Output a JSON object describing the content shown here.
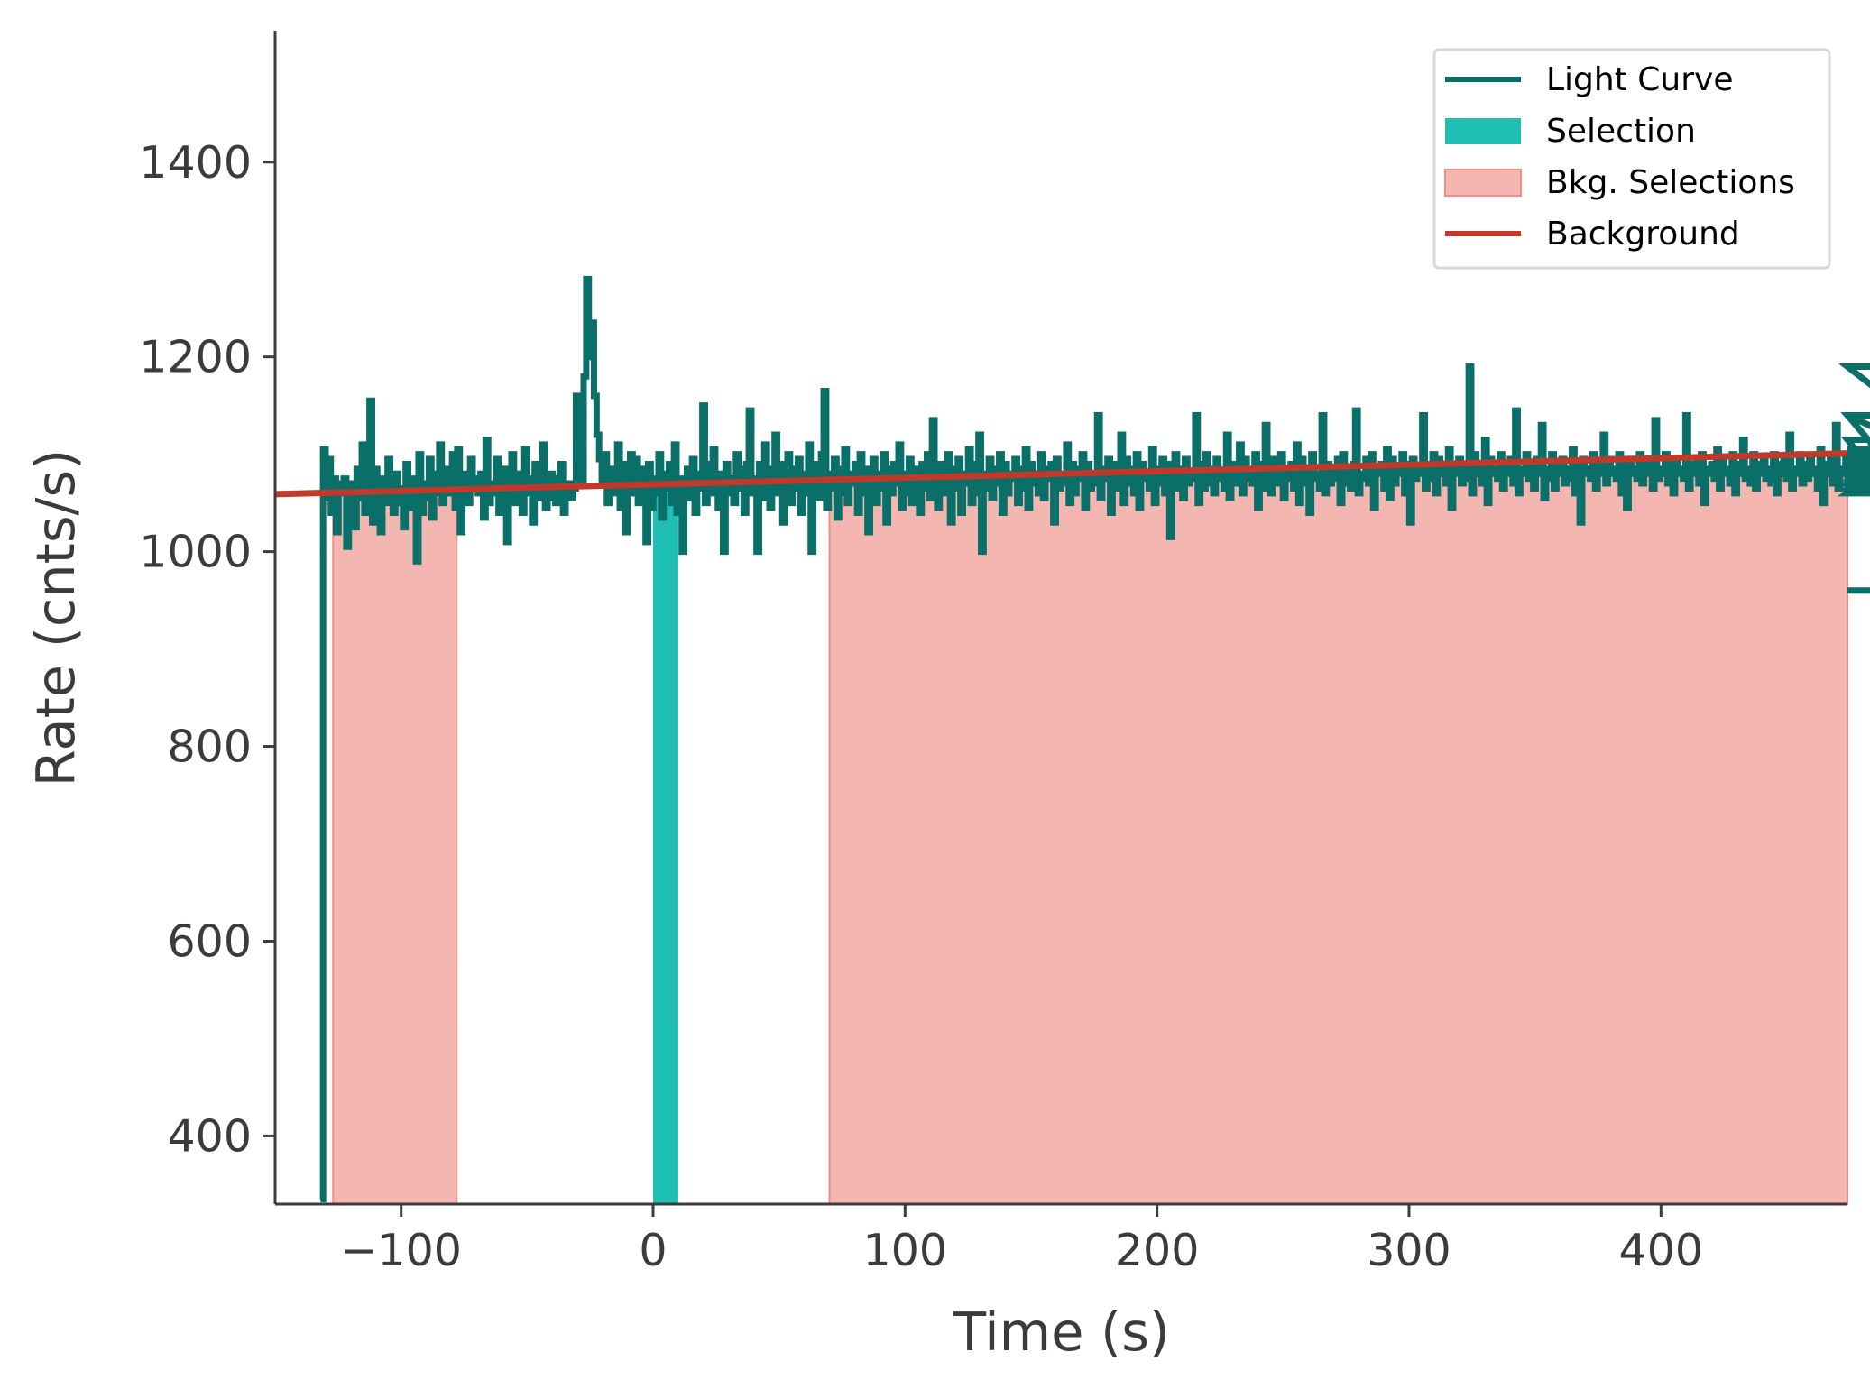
{
  "chart_data": {
    "type": "line",
    "title": "",
    "xlabel": "Time (s)",
    "ylabel": "Rate (cnts/s)",
    "xlim": [
      -150,
      474
    ],
    "ylim": [
      330,
      1535
    ],
    "x_ticks": [
      -100,
      0,
      100,
      200,
      300,
      400
    ],
    "x_tick_labels": [
      "−100",
      "0",
      "100",
      "200",
      "300",
      "400"
    ],
    "y_ticks": [
      400,
      600,
      800,
      1000,
      1200,
      1400
    ],
    "y_tick_labels": [
      "400",
      "600",
      "800",
      "1000",
      "1200",
      "1400"
    ],
    "grid": false,
    "legend": {
      "placement": "top-right",
      "entries": [
        {
          "label": "Light Curve",
          "kind": "line",
          "color": "#0a6f68"
        },
        {
          "label": "Selection",
          "kind": "patch",
          "color": "#20bfb6"
        },
        {
          "label": "Bkg. Selections",
          "kind": "patch",
          "color": "#f4b6b1"
        },
        {
          "label": "Background",
          "kind": "line",
          "color": "#c0392b"
        }
      ]
    },
    "light_curve": {
      "name": "Light Curve",
      "color": "#0a6f68",
      "bin_width": 1.024,
      "x_start": -132.0,
      "x_end": 474.0,
      "rates": [
        335,
        1105,
        1055,
        1095,
        1040,
        1075,
        1020,
        1070,
        1060,
        1075,
        1005,
        1060,
        1070,
        1025,
        1085,
        1055,
        1110,
        1040,
        1070,
        1155,
        1030,
        1085,
        1065,
        1020,
        1075,
        1050,
        1095,
        1060,
        1040,
        1080,
        1050,
        1065,
        1025,
        1090,
        1060,
        1045,
        1075,
        990,
        1100,
        1040,
        1070,
        1055,
        1095,
        1035,
        1080,
        1060,
        1110,
        1050,
        1075,
        1085,
        1060,
        1100,
        1045,
        1105,
        1020,
        1080,
        1070,
        1050,
        1095,
        1065,
        1075,
        1060,
        1080,
        1035,
        1115,
        1050,
        1070,
        1060,
        1095,
        1040,
        1075,
        1085,
        1010,
        1070,
        1100,
        1050,
        1065,
        1080,
        1040,
        1105,
        1060,
        1075,
        1030,
        1090,
        1055,
        1070,
        1110,
        1045,
        1065,
        1080,
        1055,
        1050,
        1075,
        1090,
        1040,
        1060,
        1070,
        1055,
        1065,
        1160,
        1090,
        1070,
        1180,
        1280,
        1200,
        1235,
        1160,
        1120,
        1095,
        1070,
        1100,
        1050,
        1085,
        1060,
        1080,
        1110,
        1045,
        1090,
        1020,
        1070,
        1100,
        1060,
        1095,
        1050,
        1085,
        1070,
        1010,
        1090,
        1045,
        1075,
        1060,
        1100,
        1035,
        1080,
        1065,
        1090,
        1050,
        1110,
        1040,
        1075,
        1000,
        1070,
        1085,
        1055,
        1095,
        1040,
        1080,
        1065,
        1150,
        1050,
        1090,
        1060,
        1105,
        1070,
        1045,
        1080,
        1000,
        1090,
        1060,
        1075,
        1050,
        1100,
        1065,
        1085,
        1040,
        1090,
        1145,
        1060,
        1075,
        1000,
        1090,
        1055,
        1110,
        1070,
        1045,
        1085,
        1120,
        1060,
        1090,
        1030,
        1075,
        1100,
        1050,
        1085,
        1065,
        1095,
        1040,
        1080,
        1060,
        1110,
        1000,
        1075,
        1090,
        1055,
        1100,
        1165,
        1045,
        1080,
        1065,
        1095,
        1035,
        1085,
        1060,
        1105,
        1050,
        1080,
        1070,
        1090,
        1040,
        1100,
        1060,
        1085,
        1020,
        1075,
        1095,
        1050,
        1080,
        1065,
        1100,
        1030,
        1085,
        1060,
        1090,
        1070,
        1110,
        1045,
        1080,
        1060,
        1095,
        1050,
        1075,
        1085,
        1040,
        1090,
        1065,
        1100,
        1055,
        1135,
        1070,
        1045,
        1090,
        1060,
        1080,
        1100,
        1030,
        1085,
        1065,
        1095,
        1040,
        1080,
        1070,
        1105,
        1050,
        1090,
        1060,
        1120,
        1000,
        1080,
        1065,
        1095,
        1055,
        1085,
        1070,
        1100,
        1040,
        1090,
        1060,
        1080,
        1075,
        1095,
        1050,
        1085,
        1065,
        1105,
        1045,
        1090,
        1070,
        1080,
        1060,
        1100,
        1055,
        1085,
        1075,
        1090,
        1030,
        1095,
        1065,
        1080,
        1070,
        1110,
        1050,
        1090,
        1060,
        1085,
        1075,
        1100,
        1045,
        1090,
        1065,
        1080,
        1070,
        1140,
        1055,
        1085,
        1075,
        1095,
        1040,
        1090,
        1065,
        1080,
        1120,
        1050,
        1095,
        1070,
        1085,
        1060,
        1100,
        1045,
        1090,
        1075,
        1080,
        1065,
        1105,
        1050,
        1085,
        1070,
        1095,
        1060,
        1090,
        1015,
        1080,
        1100,
        1065,
        1085,
        1055,
        1095,
        1070,
        1080,
        1075,
        1140,
        1050,
        1090,
        1065,
        1100,
        1070,
        1085,
        1060,
        1095,
        1075,
        1080,
        1065,
        1120,
        1055,
        1090,
        1070,
        1085,
        1110,
        1060,
        1095,
        1075,
        1080,
        1070,
        1100,
        1045,
        1090,
        1065,
        1130,
        1075,
        1060,
        1095,
        1080,
        1070,
        1100,
        1055,
        1085,
        1075,
        1090,
        1065,
        1110,
        1050,
        1095,
        1070,
        1085,
        1040,
        1100,
        1075,
        1080,
        1065,
        1140,
        1060,
        1090,
        1070,
        1085,
        1075,
        1095,
        1050,
        1100,
        1070,
        1085,
        1065,
        1090,
        1145,
        1060,
        1080,
        1075,
        1095,
        1070,
        1100,
        1045,
        1085,
        1080,
        1090,
        1065,
        1105,
        1055,
        1095,
        1070,
        1085,
        1080,
        1100,
        1060,
        1090,
        1030,
        1095,
        1075,
        1080,
        1085,
        1140,
        1065,
        1090,
        1075,
        1100,
        1060,
        1095,
        1080,
        1085,
        1070,
        1105,
        1045,
        1090,
        1080,
        1095,
        1070,
        1085,
        1075,
        1190,
        1060,
        1100,
        1080,
        1090,
        1070,
        1115,
        1050,
        1095,
        1080,
        1085,
        1075,
        1100,
        1065,
        1090,
        1080,
        1095,
        1070,
        1145,
        1060,
        1085,
        1080,
        1100,
        1075,
        1090,
        1065,
        1095,
        1080,
        1130,
        1055,
        1085,
        1075,
        1100,
        1065,
        1090,
        1080,
        1095,
        1070,
        1085,
        1075,
        1105,
        1060,
        1090,
        1030,
        1095,
        1080,
        1085,
        1075,
        1100,
        1065,
        1090,
        1080,
        1120,
        1070,
        1095,
        1080,
        1085,
        1075,
        1100,
        1060,
        1090,
        1045,
        1095,
        1080,
        1085,
        1075,
        1100,
        1070,
        1090,
        1080,
        1095,
        1065,
        1135,
        1075,
        1085,
        1080,
        1100,
        1070,
        1090,
        1060,
        1095,
        1080,
        1085,
        1075,
        1140,
        1065,
        1090,
        1080,
        1095,
        1070,
        1100,
        1050,
        1085,
        1080,
        1090,
        1075,
        1105,
        1065,
        1095,
        1080,
        1085,
        1070,
        1100,
        1060,
        1090,
        1080,
        1115,
        1075,
        1085,
        1070,
        1100,
        1065,
        1090,
        1080,
        1095,
        1075,
        1085,
        1070,
        1100,
        1060,
        1090,
        1080,
        1095,
        1075,
        1120,
        1065,
        1085,
        1080,
        1100,
        1070,
        1090,
        1075,
        1095,
        1080,
        1085,
        1065,
        1105,
        1050,
        1090,
        1080,
        1095,
        1070,
        1130,
        1065,
        1085,
        1080,
        1100,
        1075,
        1090,
        1060,
        1095,
        1080,
        1085,
        1070,
        1100,
        1065,
        1090,
        1080,
        1115,
        1075,
        1085,
        1070,
        1100,
        1060,
        1090,
        1080,
        1095,
        1075,
        1085,
        1070,
        1140,
        1065,
        1090,
        1080,
        1095,
        1075,
        1100,
        1060,
        1085,
        1080,
        1090,
        1070,
        1105,
        1065,
        1095,
        1080,
        1085,
        1075,
        1100,
        1070,
        1090,
        1080,
        1095,
        1065,
        1085,
        1075,
        1100,
        1070,
        1090,
        1080,
        1095,
        1070,
        1190,
        1075,
        1085,
        1080,
        1100,
        1070,
        1090,
        1065,
        1095,
        1080,
        1140,
        1060,
        1100,
        1075,
        1090,
        1080,
        1095,
        1070,
        1105,
        1065,
        1085,
        1080,
        1100,
        960
      ]
    },
    "selection": {
      "name": "Selection",
      "range": [
        0,
        10
      ],
      "color": "#20bfb6"
    },
    "bkg_selections": {
      "name": "Bkg. Selections",
      "ranges": [
        [
          -127,
          -78
        ],
        [
          70,
          474
        ]
      ],
      "color": "#f4b6b1",
      "edge_color": "#ee8f87"
    },
    "background": {
      "name": "Background",
      "color": "#c0392b",
      "x": [
        -150,
        474
      ],
      "y": [
        1059,
        1101
      ]
    }
  }
}
